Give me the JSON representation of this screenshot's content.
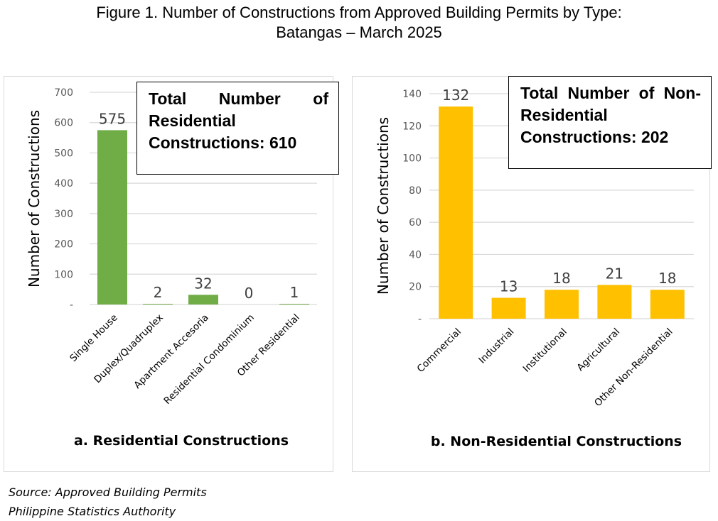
{
  "figure": {
    "title_line1": "Figure 1.  Number of Constructions from Approved Building Permits by Type:",
    "title_line2": "Batangas – March 2025"
  },
  "chart_data": [
    {
      "type": "bar",
      "title": "a. Residential Constructions",
      "ylabel": "Number of Constructions",
      "xlabel": "",
      "categories": [
        "Single House",
        "Duplex/Quadruplex",
        "Apartment Accesoria",
        "Residential Condominium",
        "Other Residential"
      ],
      "values": [
        575,
        2,
        32,
        0,
        1
      ],
      "data_labels": [
        "575",
        "2",
        "32",
        "0",
        "1"
      ],
      "ylim": [
        0,
        700
      ],
      "yticks": [
        0,
        100,
        200,
        300,
        400,
        500,
        600,
        700
      ],
      "ytick_labels": [
        "-",
        "100",
        "200",
        "300",
        "400",
        "500",
        "600",
        "700"
      ],
      "color": "#70ad47",
      "grid": true,
      "annotation": "Total Number of Residential Constructions: 610"
    },
    {
      "type": "bar",
      "title": "b. Non-Residential Constructions",
      "ylabel": "Number of Constructions",
      "xlabel": "",
      "categories": [
        "Commercial",
        "Industrial",
        "Institutional",
        "Agricultural",
        "Other Non-Residential"
      ],
      "values": [
        132,
        13,
        18,
        21,
        18
      ],
      "data_labels": [
        "132",
        "13",
        "18",
        "21",
        "18"
      ],
      "ylim": [
        0,
        140
      ],
      "yticks": [
        0,
        20,
        40,
        60,
        80,
        100,
        120,
        140
      ],
      "ytick_labels": [
        "-",
        "20",
        "40",
        "60",
        "80",
        "100",
        "120",
        "140"
      ],
      "color": "#ffc000",
      "grid": true,
      "annotation": "Total Number of Non-Residential Constructions: 202"
    }
  ],
  "source": {
    "line1": "Source: Approved Building Permits",
    "line2": "Philippine Statistics Authority"
  }
}
